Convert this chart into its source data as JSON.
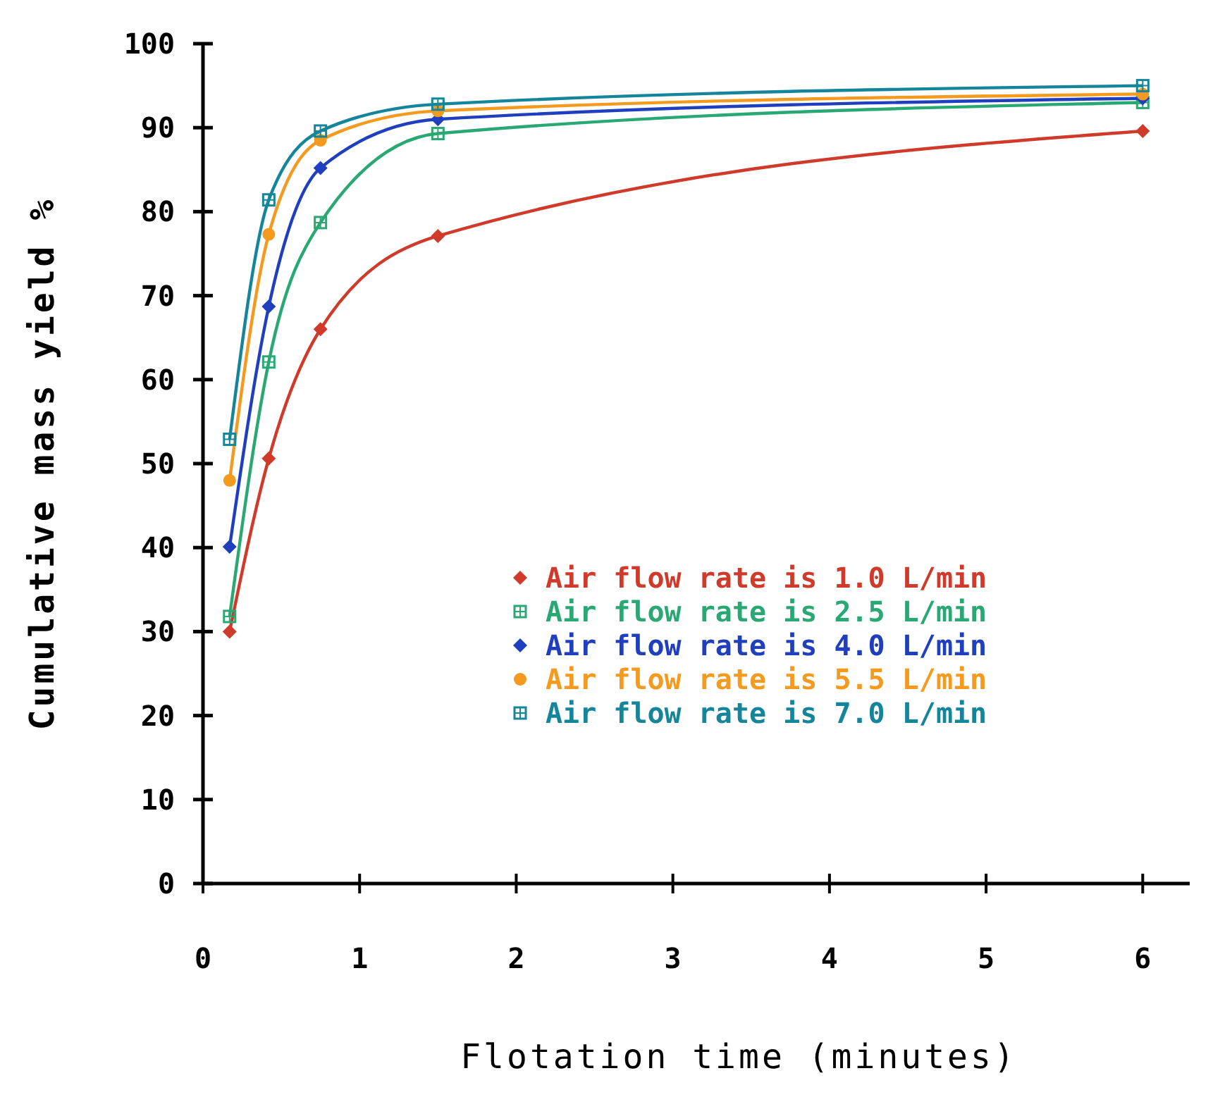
{
  "chart_data": {
    "type": "line",
    "xlabel": "Flotation time (minutes)",
    "ylabel": "Cumulative mass yield %",
    "x": [
      0.17,
      0.42,
      0.75,
      1.5,
      6
    ],
    "xlim": [
      0,
      6.3
    ],
    "xticks": [
      0,
      1,
      2,
      3,
      4,
      5,
      6
    ],
    "ylim": [
      0,
      100
    ],
    "yticks": [
      0,
      10,
      20,
      30,
      40,
      50,
      60,
      70,
      80,
      90,
      100
    ],
    "grid": false,
    "legend": "bottom right",
    "line_style": "solid",
    "series": [
      {
        "name": "Air flow rate is 1.0 L/min",
        "color": "#d03a2a",
        "marker": "diamond",
        "values": [
          30,
          50.6,
          66,
          77.1,
          89.6
        ]
      },
      {
        "name": "Air flow rate is 2.5 L/min",
        "color": "#2aa874",
        "marker": "square",
        "values": [
          31.8,
          62.1,
          78.7,
          89.3,
          93
        ]
      },
      {
        "name": "Air flow rate is 4.0 L/min",
        "color": "#1f3fbf",
        "marker": "diamond",
        "values": [
          40.1,
          68.7,
          85.2,
          91,
          93.5
        ]
      },
      {
        "name": "Air flow rate is 5.5 L/min",
        "color": "#f39a1f",
        "marker": "circle",
        "values": [
          48,
          77.3,
          88.5,
          92,
          94
        ]
      },
      {
        "name": "Air flow rate is 7.0 L/min",
        "color": "#14859a",
        "marker": "square",
        "values": [
          52.9,
          81.4,
          89.6,
          92.8,
          95
        ]
      }
    ]
  }
}
